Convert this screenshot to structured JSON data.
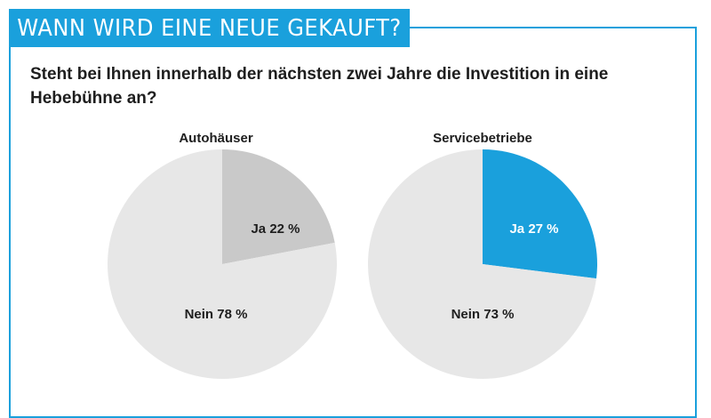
{
  "header": {
    "title": "WANN WIRD EINE NEUE GEKAUFT?"
  },
  "question": "Steht bei Ihnen innerhalb der nächsten zwei Jahre die Investition in eine Hebebühne an?",
  "colors": {
    "accent": "#1aa0dc",
    "grey_dark": "#c9c9c9",
    "grey_light": "#e7e7e7",
    "text": "#1e1e1e"
  },
  "chart_data": [
    {
      "type": "pie",
      "title": "Autohäuser",
      "slices": [
        {
          "label": "Ja 22 %",
          "name": "Ja",
          "value": 22,
          "color": "#c9c9c9",
          "text_color": "#1e1e1e"
        },
        {
          "label": "Nein 78 %",
          "name": "Nein",
          "value": 78,
          "color": "#e7e7e7",
          "text_color": "#1e1e1e"
        }
      ]
    },
    {
      "type": "pie",
      "title": "Servicebetriebe",
      "slices": [
        {
          "label": "Ja 27 %",
          "name": "Ja",
          "value": 27,
          "color": "#1aa0dc",
          "text_color": "#ffffff"
        },
        {
          "label": "Nein 73 %",
          "name": "Nein",
          "value": 73,
          "color": "#e7e7e7",
          "text_color": "#1e1e1e"
        }
      ]
    }
  ]
}
